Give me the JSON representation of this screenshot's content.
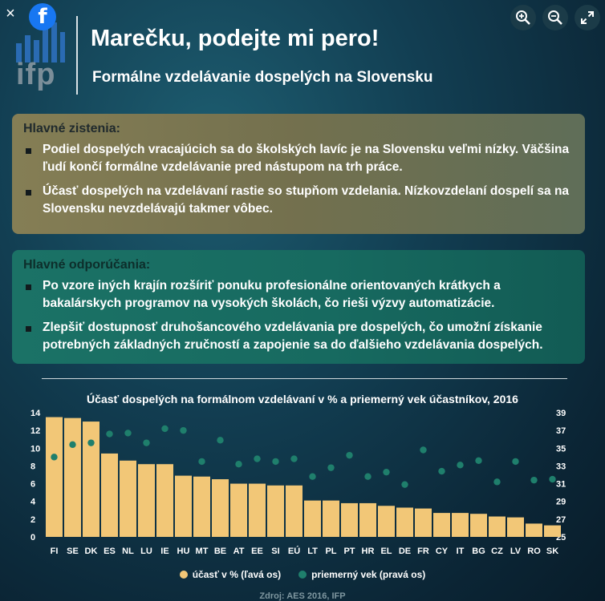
{
  "header": {
    "logo_text": "ifp",
    "title": "Marečku, podejte mi pero!",
    "subtitle": "Formálne vzdelávanie dospelých na Slovensku"
  },
  "controls": {
    "close_icon": "×",
    "facebook_icon": "f"
  },
  "findings": {
    "title": "Hlavné zistenia:",
    "items": [
      "Podiel dospelých vracajúcich sa do školských lavíc je na Slovensku veľmi nízky. Väčšina ľudí končí formálne vzdelávanie pred nástupom na trh práce.",
      "Účasť dospelých na vzdelávaní rastie so stupňom vzdelania. Nízkovzdelaní dospelí sa na Slovensku nevzdelávajú takmer vôbec."
    ]
  },
  "recommendations": {
    "title": "Hlavné odporúčania:",
    "items": [
      "Po vzore iných krajín rozšíriť ponuku profesionálne orientovaných krátkych a bakalárskych programov na vysokých školách, čo rieši výzvy automatizácie.",
      "Zlepšiť dostupnosť druhošancového vzdelávania pre dospelých, čo umožní získanie potrebných základných zručností a zapojenie sa do ďalšieho vzdelávania dospelých."
    ]
  },
  "chart_data": {
    "type": "bar",
    "title": "Účasť dospelých na formálnom vzdelávaní  v % a priemerný vek účastníkov, 2016",
    "categories": [
      "FI",
      "SE",
      "DK",
      "ES",
      "NL",
      "LU",
      "IE",
      "HU",
      "MT",
      "BE",
      "AT",
      "EE",
      "SI",
      "EÚ",
      "LT",
      "PL",
      "PT",
      "HR",
      "EL",
      "DE",
      "FR",
      "CY",
      "IT",
      "BG",
      "CZ",
      "LV",
      "RO",
      "SK"
    ],
    "series": [
      {
        "name": "účasť v % (ľavá os)",
        "axis": "left",
        "values": [
          13.5,
          13.4,
          13.0,
          9.4,
          8.6,
          8.2,
          8.2,
          6.9,
          6.8,
          6.5,
          6.0,
          6.0,
          5.8,
          5.8,
          4.1,
          4.1,
          3.8,
          3.8,
          3.5,
          3.3,
          3.2,
          2.7,
          2.7,
          2.6,
          2.3,
          2.2,
          1.5,
          1.3
        ]
      },
      {
        "name": "priemerný vek (pravá os)",
        "axis": "right",
        "values": [
          34.0,
          35.4,
          35.6,
          36.6,
          36.7,
          35.6,
          37.2,
          37.0,
          33.5,
          35.9,
          33.2,
          33.8,
          33.5,
          33.8,
          31.8,
          32.8,
          34.2,
          31.8,
          32.3,
          30.9,
          34.8,
          32.4,
          33.1,
          33.6,
          31.2,
          33.5,
          31.4,
          31.5
        ]
      }
    ],
    "ylim_left": [
      0,
      14
    ],
    "yticks_left": [
      0,
      2,
      4,
      6,
      8,
      10,
      12,
      14
    ],
    "ylim_right": [
      25,
      39
    ],
    "yticks_right": [
      25,
      27,
      29,
      31,
      33,
      35,
      37,
      39
    ],
    "bar_color": "#f2c777",
    "dot_color": "#1f7f6c",
    "legend_position": "bottom"
  },
  "source": "Zdroj: AES 2016, IFP"
}
